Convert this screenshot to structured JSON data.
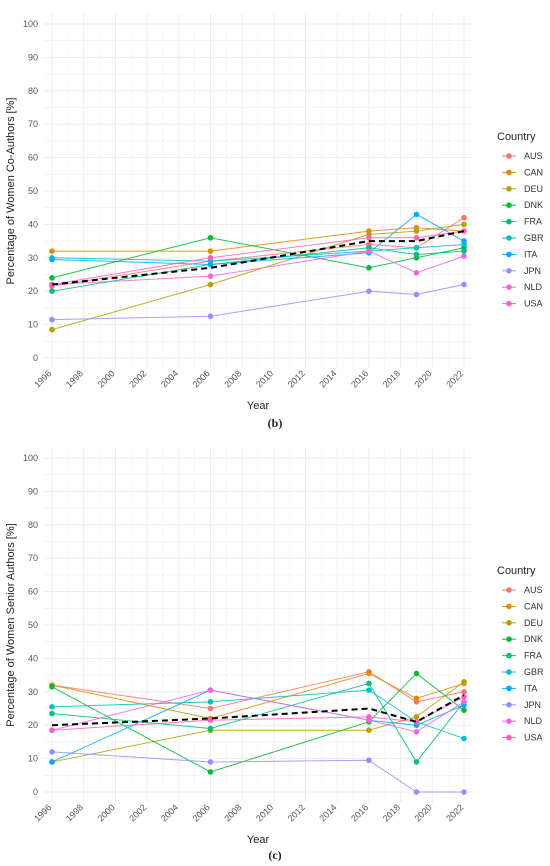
{
  "chart_data": [
    {
      "type": "line",
      "caption": "(b)",
      "xlabel": "Year",
      "ylabel": "Percentage of Women Co-Authors [%]",
      "xlim": [
        1996,
        2022
      ],
      "ylim": [
        0,
        100
      ],
      "x_ticks": [
        "1996",
        "1998",
        "2000",
        "2002",
        "2004",
        "2006",
        "2008",
        "2010",
        "2012",
        "2014",
        "2016",
        "2018",
        "2020",
        "2022"
      ],
      "y_ticks": [
        "0",
        "10",
        "20",
        "30",
        "40",
        "50",
        "60",
        "70",
        "80",
        "90",
        "100"
      ],
      "legend_title": "Country",
      "legend_position": "right",
      "x": [
        1996,
        2006,
        2016,
        2019,
        2022
      ],
      "series": [
        {
          "name": "AUS",
          "color": "#F8766D",
          "values": [
            21.5,
            29,
            34,
            33,
            42
          ]
        },
        {
          "name": "CAN",
          "color": "#E08B00",
          "values": [
            32,
            32,
            38,
            39,
            38
          ]
        },
        {
          "name": "DEU",
          "color": "#B79F00",
          "values": [
            8.5,
            22,
            37,
            38,
            40
          ]
        },
        {
          "name": "DNK",
          "color": "#00BA38",
          "values": [
            24,
            36,
            27,
            30,
            33
          ]
        },
        {
          "name": "FRA",
          "color": "#00BF7D",
          "values": [
            20,
            28,
            33,
            31,
            32
          ]
        },
        {
          "name": "GBR",
          "color": "#00BFC4",
          "values": [
            30,
            29,
            32,
            33,
            34
          ]
        },
        {
          "name": "ITA",
          "color": "#00A9FF",
          "values": [
            29.5,
            28,
            31.5,
            43,
            35
          ]
        },
        {
          "name": "JPN",
          "color": "#9590FF",
          "values": [
            11.5,
            12.5,
            20,
            19,
            22
          ]
        },
        {
          "name": "NLD",
          "color": "#F564E3",
          "values": [
            22,
            24.5,
            32,
            25.5,
            30.5
          ]
        },
        {
          "name": "USA",
          "color": "#FF62BC",
          "values": [
            22,
            30,
            36,
            36,
            38
          ]
        }
      ],
      "average": {
        "color": "#000000",
        "values": [
          22,
          27,
          35,
          35,
          38
        ]
      }
    },
    {
      "type": "line",
      "caption": "(c)",
      "xlabel": "Year",
      "ylabel": "Percentage of Women Senior Authors [%]",
      "xlim": [
        1996,
        2022
      ],
      "ylim": [
        0,
        100
      ],
      "x_ticks": [
        "1996",
        "1998",
        "2000",
        "2002",
        "2004",
        "2006",
        "2008",
        "2010",
        "2012",
        "2014",
        "2016",
        "2018",
        "2020",
        "2022"
      ],
      "y_ticks": [
        "0",
        "10",
        "20",
        "30",
        "40",
        "50",
        "60",
        "70",
        "80",
        "90",
        "100"
      ],
      "legend_title": "Country",
      "legend_position": "right",
      "x": [
        1996,
        2006,
        2016,
        2019,
        2022
      ],
      "series": [
        {
          "name": "AUS",
          "color": "#F8766D",
          "values": [
            32,
            25,
            36,
            27,
            30
          ]
        },
        {
          "name": "CAN",
          "color": "#E08B00",
          "values": [
            32,
            22,
            35.5,
            28,
            32.5
          ]
        },
        {
          "name": "DEU",
          "color": "#B79F00",
          "values": [
            9,
            18.5,
            18.5,
            22.5,
            33
          ]
        },
        {
          "name": "DNK",
          "color": "#00BA38",
          "values": [
            31.5,
            6,
            21,
            35.5,
            24.5
          ]
        },
        {
          "name": "FRA",
          "color": "#00BF7D",
          "values": [
            23.5,
            19,
            32.5,
            9,
            27
          ]
        },
        {
          "name": "GBR",
          "color": "#00BFC4",
          "values": [
            25.5,
            27,
            30.5,
            21,
            16
          ]
        },
        {
          "name": "ITA",
          "color": "#00A9FF",
          "values": [
            9,
            30.5,
            21.5,
            20,
            26
          ]
        },
        {
          "name": "JPN",
          "color": "#9590FF",
          "values": [
            12,
            9,
            9.5,
            0,
            0
          ]
        },
        {
          "name": "NLD",
          "color": "#F564E3",
          "values": [
            18.5,
            30.5,
            21.5,
            18,
            27
          ]
        },
        {
          "name": "USA",
          "color": "#FF62BC",
          "values": [
            18.5,
            21.5,
            22.5,
            21,
            28.5
          ]
        }
      ],
      "average": {
        "color": "#000000",
        "values": [
          20,
          22,
          25,
          21,
          29
        ]
      }
    }
  ]
}
